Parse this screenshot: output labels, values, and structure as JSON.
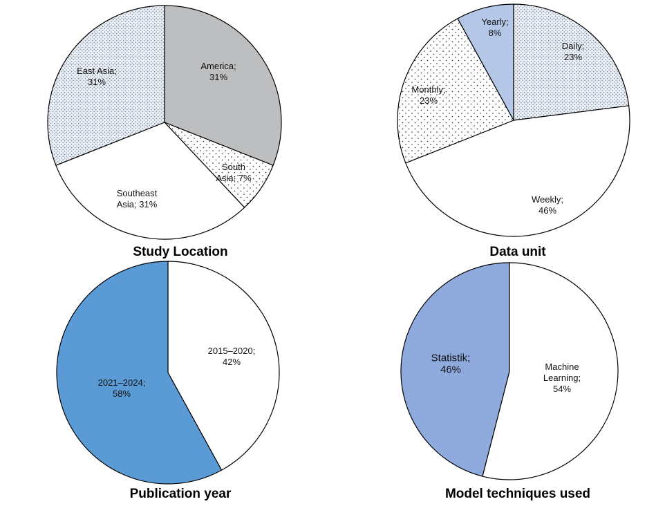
{
  "chart_data": [
    {
      "type": "pie",
      "title": "Study Location",
      "slices": [
        {
          "label": "America",
          "value": 31,
          "display": [
            "America;",
            "31%"
          ],
          "fill": "gray"
        },
        {
          "label": "South Asia",
          "value": 7,
          "display": [
            "South",
            "Asia; 7%"
          ],
          "fill": "dots-sparse"
        },
        {
          "label": "Southeast Asia",
          "value": 31,
          "display": [
            "Southeast",
            "Asia; 31%"
          ],
          "fill": "white"
        },
        {
          "label": "East Asia",
          "value": 31,
          "display": [
            "East Asia;",
            "31%"
          ],
          "fill": "dots-dense"
        }
      ]
    },
    {
      "type": "pie",
      "title": "Data unit",
      "slices": [
        {
          "label": "Daily",
          "value": 23,
          "display": [
            "Daily;",
            "23%"
          ],
          "fill": "dots-dense"
        },
        {
          "label": "Weekly",
          "value": 46,
          "display": [
            "Weekly;",
            "46%"
          ],
          "fill": "white"
        },
        {
          "label": "Monthly",
          "value": 23,
          "display": [
            "Monthly;",
            "23%"
          ],
          "fill": "dots-sparse"
        },
        {
          "label": "Yearly",
          "value": 8,
          "display": [
            "Yearly;",
            "8%"
          ],
          "fill": "light-blue"
        }
      ]
    },
    {
      "type": "pie",
      "title": "Publication year",
      "slices": [
        {
          "label": "2015–2020",
          "value": 42,
          "display": [
            "2015–2020;",
            "42%"
          ],
          "fill": "white"
        },
        {
          "label": "2021–2024",
          "value": 58,
          "display": [
            "2021–2024;",
            "58%"
          ],
          "fill": "blue"
        }
      ]
    },
    {
      "type": "pie",
      "title": "Model techniques used",
      "slices": [
        {
          "label": "Machine Learning",
          "value": 54,
          "display": [
            "Machine",
            "Learning;",
            "54%"
          ],
          "fill": "white"
        },
        {
          "label": "Statistik",
          "value": 46,
          "display": [
            "Statistik;",
            "46%"
          ],
          "fill": "periwinkle",
          "large": true
        }
      ]
    }
  ],
  "colors": {
    "gray": "#bcbec0",
    "white": "#ffffff",
    "blue": "#5b9bd5",
    "light-blue": "#b4c7e7",
    "periwinkle": "#8faadc",
    "dot": "#505050",
    "dot-bg": "#ffffff",
    "dense-bg": "#e7eef7",
    "stroke": "#000000"
  }
}
